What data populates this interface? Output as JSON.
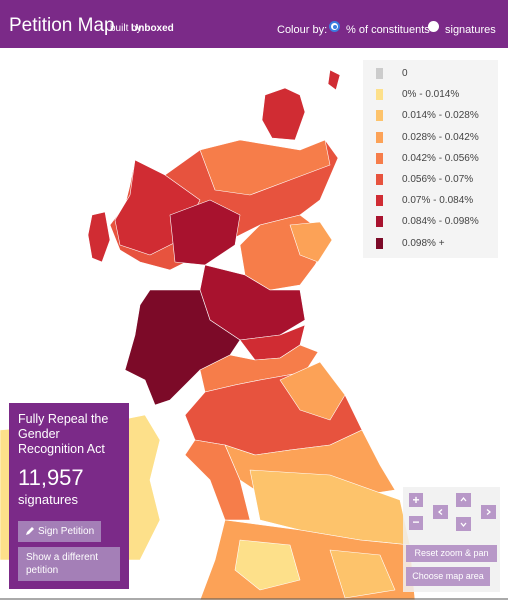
{
  "header": {
    "title": "Petition Map",
    "built_by": "built by",
    "brand": "Unboxed",
    "colour_by": "Colour by:",
    "options": [
      "% of constituents",
      "signatures"
    ]
  },
  "legend": {
    "items": [
      {
        "label": "0",
        "color": "#cccccc"
      },
      {
        "label": "0% - 0.014%",
        "color": "#fde08a"
      },
      {
        "label": "0.014% - 0.028%",
        "color": "#fdc36b"
      },
      {
        "label": "0.028% - 0.042%",
        "color": "#fca257"
      },
      {
        "label": "0.042% - 0.056%",
        "color": "#f67d4a"
      },
      {
        "label": "0.056% - 0.07%",
        "color": "#e7533e"
      },
      {
        "label": "0.07% - 0.084%",
        "color": "#d02c33"
      },
      {
        "label": "0.084% - 0.098%",
        "color": "#a8122e"
      },
      {
        "label": "0.098% +",
        "color": "#7c0a28"
      }
    ]
  },
  "petition": {
    "title": "Fully Repeal the Gender Recognition Act",
    "count": "11,957",
    "unit": "signatures",
    "sign": "Sign Petition",
    "other": "Show a different petition"
  },
  "controls": {
    "zoom_in": "+",
    "zoom_out": "−",
    "reset": "Reset zoom & pan",
    "choose": "Choose map area"
  }
}
